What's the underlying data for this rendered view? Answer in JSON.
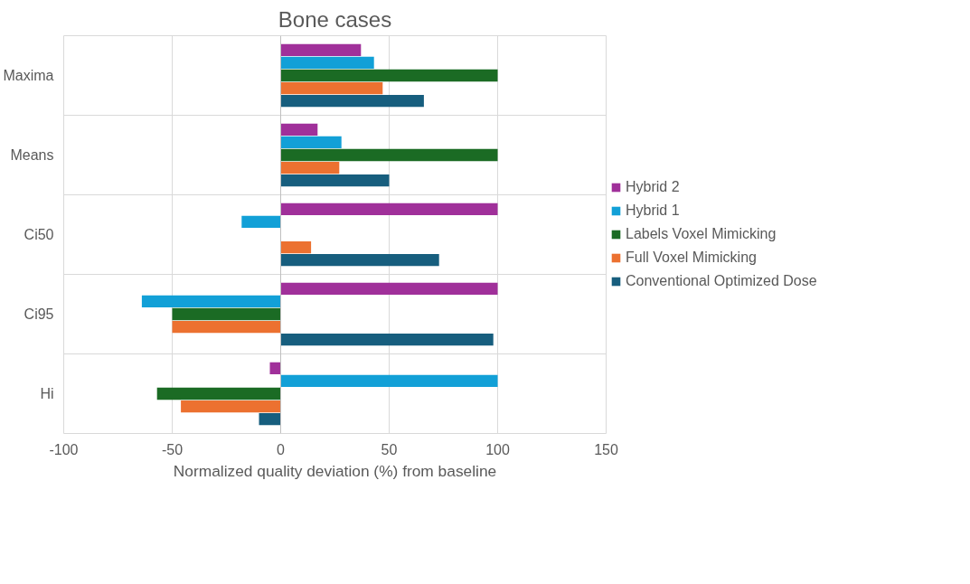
{
  "chart_data": {
    "type": "bar",
    "orientation": "horizontal",
    "title": "Bone cases",
    "xlabel": "Normalized quality deviation (%) from baseline",
    "categories": [
      "Maxima",
      "Means",
      "Ci50",
      "Ci95",
      "Hi"
    ],
    "series": [
      {
        "name": "Hybrid 2",
        "color": "#a0309a",
        "values": [
          37,
          17,
          100,
          100,
          -5
        ]
      },
      {
        "name": "Hybrid 1",
        "color": "#12a0d7",
        "values": [
          43,
          28,
          -18,
          -64,
          100
        ]
      },
      {
        "name": "Labels Voxel Mimicking",
        "color": "#1b6b24",
        "values": [
          100,
          100,
          0,
          -50,
          -57
        ]
      },
      {
        "name": "Full Voxel Mimicking",
        "color": "#ec7130",
        "values": [
          47,
          27,
          14,
          -50,
          -46
        ]
      },
      {
        "name": "Conventional Optimized Dose",
        "color": "#175e7e",
        "values": [
          66,
          50,
          73,
          98,
          -10
        ]
      }
    ],
    "xlim": [
      -100,
      150
    ],
    "xticks": [
      -100,
      -50,
      0,
      50,
      100,
      150
    ],
    "grid": true,
    "legend": "right"
  }
}
